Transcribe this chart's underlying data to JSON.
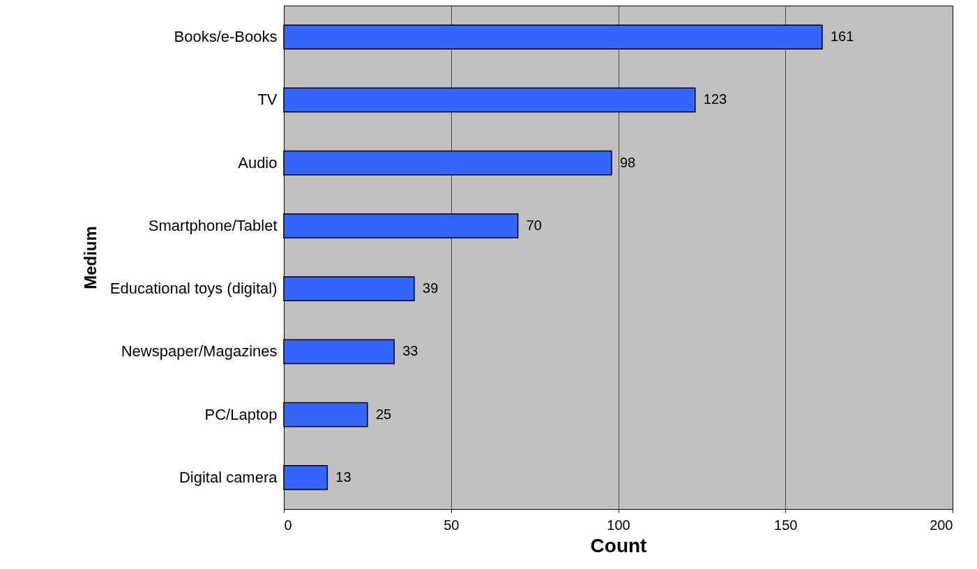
{
  "chart_data": {
    "type": "bar",
    "orientation": "horizontal",
    "xlabel": "Count",
    "ylabel": "Medium",
    "categories": [
      "Books/e-Books",
      "TV",
      "Audio",
      "Smartphone/Tablet",
      "Educational toys (digital)",
      "Newspaper/Magazines",
      "PC/Laptop",
      "Digital camera"
    ],
    "values": [
      161,
      123,
      98,
      70,
      39,
      33,
      25,
      13
    ],
    "color": "#3366ff",
    "xlim": [
      0,
      200
    ],
    "xticks": [
      0,
      50,
      100,
      150,
      200
    ],
    "grid": "x",
    "data_labels": true
  }
}
